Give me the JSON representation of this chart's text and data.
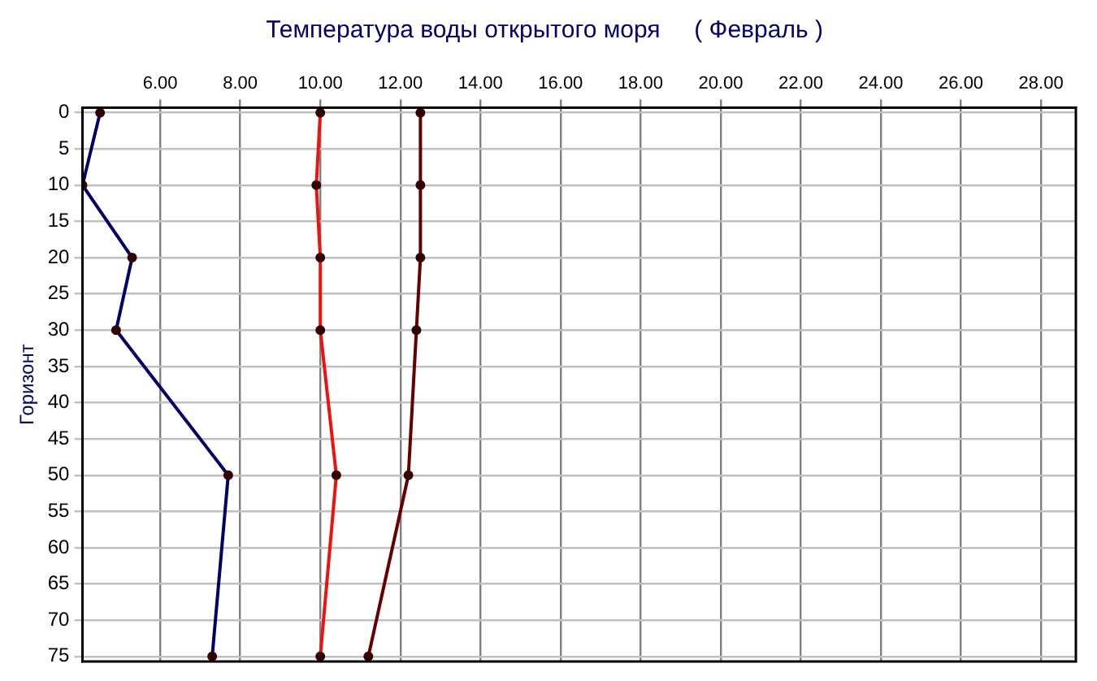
{
  "chart_data": {
    "type": "line",
    "title": "Температура воды открытого моря     ( Февраль )",
    "ylabel": "Горизонт",
    "series": [
      {
        "color": "#000066",
        "x": [
          4.5,
          4.06,
          5.3,
          4.9,
          7.7,
          7.3
        ],
        "values": [
          0,
          10,
          20,
          30,
          50,
          75
        ]
      },
      {
        "color": "#ee1111",
        "x": [
          10.0,
          9.9,
          10.0,
          10.0,
          10.4,
          10.0
        ],
        "values": [
          0,
          10,
          20,
          30,
          50,
          75
        ]
      },
      {
        "color": "#660000",
        "x": [
          12.5,
          12.5,
          12.5,
          12.4,
          12.2,
          11.2
        ],
        "values": [
          0,
          10,
          20,
          30,
          50,
          75
        ]
      }
    ],
    "xlim": [
      4.06,
      28.87
    ],
    "xticks": [
      {
        "value": 6,
        "label": "6.00"
      },
      {
        "value": 8,
        "label": "8.00"
      },
      {
        "value": 10,
        "label": "10.00"
      },
      {
        "value": 12,
        "label": "12.00"
      },
      {
        "value": 14,
        "label": "14.00"
      },
      {
        "value": 16,
        "label": "16.00"
      },
      {
        "value": 18,
        "label": "18.00"
      },
      {
        "value": 20,
        "label": "20.00"
      },
      {
        "value": 22,
        "label": "22.00"
      },
      {
        "value": 24,
        "label": "24.00"
      },
      {
        "value": 26,
        "label": "26.00"
      },
      {
        "value": 28,
        "label": "28.00"
      }
    ],
    "ylim": [
      75.7,
      -0.7
    ],
    "yticks": [
      0,
      5,
      10,
      15,
      20,
      25,
      30,
      35,
      40,
      45,
      50,
      55,
      60,
      65,
      70,
      75
    ],
    "grid": true,
    "legend": false,
    "marker": "circle",
    "line_style": "solid"
  }
}
